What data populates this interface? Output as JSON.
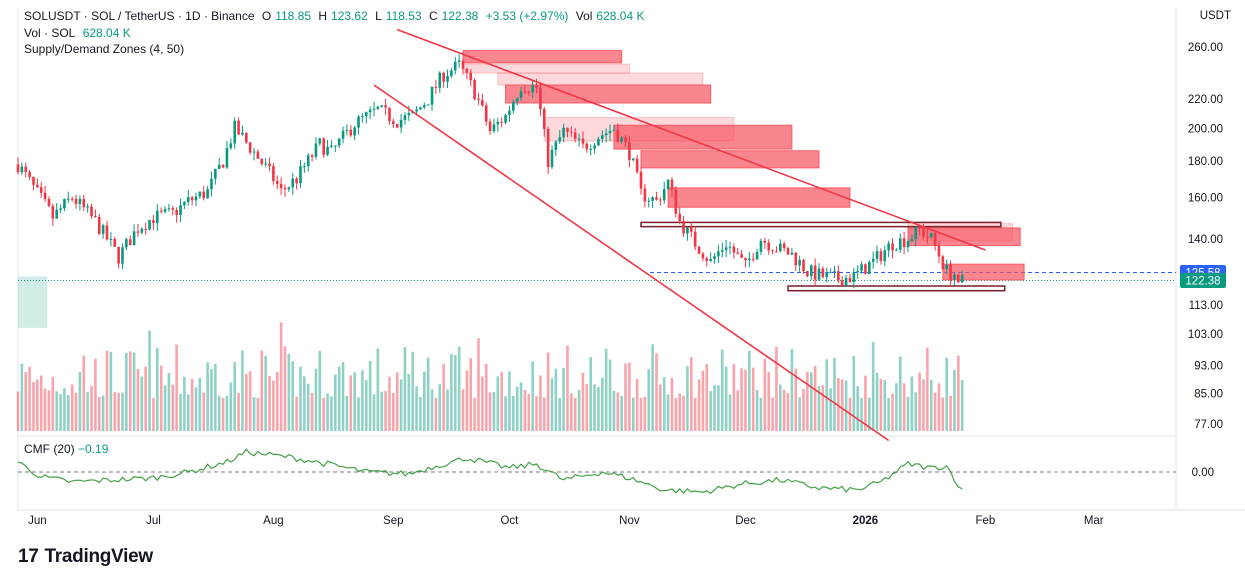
{
  "header": {
    "symbol": "SOLUSDT · SOL / TetherUS · 1D · Binance",
    "open_label": "O",
    "open": "118.85",
    "high_label": "H",
    "high": "123.62",
    "low_label": "L",
    "low": "118.53",
    "close_label": "C",
    "close": "122.38",
    "change": "+3.53 (+2.97%)",
    "vol_label": "Vol",
    "vol": "628.04 K",
    "vol_line_label": "Vol · SOL",
    "vol_line_value": "628.04 K",
    "indicator": "Supply/Demand Zones (4, 50)"
  },
  "cmf": {
    "label": "CMF (20)",
    "value": "−0.19"
  },
  "currency": "USDT",
  "brand": "TradingView",
  "colors": {
    "up": "#089981",
    "down": "#f23645",
    "zone": "#f7525f",
    "trend": "#f23645",
    "price_tag": "#2962ff"
  },
  "chart_data": {
    "type": "candlestick",
    "y_scale": "log",
    "price_ticks": [
      "260.00",
      "220.00",
      "200.00",
      "180.00",
      "160.00",
      "140.00",
      "113.00",
      "103.00",
      "93.00",
      "85.00",
      "77.00"
    ],
    "price_tick_values": [
      260,
      220,
      200,
      180,
      160,
      140,
      113,
      103,
      93,
      85,
      77
    ],
    "price_tags": [
      {
        "label": "125.58",
        "value": 125.58,
        "color": "#2962ff"
      },
      {
        "label": "122.38",
        "value": 122.38,
        "color": "#089981"
      }
    ],
    "x_ticks": [
      "Jun",
      "Jul",
      "Aug",
      "Sep",
      "Oct",
      "Nov",
      "Dec",
      "2026",
      "Feb",
      "Mar"
    ],
    "x_tick_dates": [
      "2025-06-01",
      "2025-07-01",
      "2025-08-01",
      "2025-09-01",
      "2025-10-01",
      "2025-11-01",
      "2025-12-01",
      "2026-01-01",
      "2026-02-01",
      "2026-03-01"
    ],
    "price_path": [
      [
        "2025-05-27",
        178
      ],
      [
        "2025-05-31",
        165
      ],
      [
        "2025-06-05",
        150
      ],
      [
        "2025-06-10",
        160
      ],
      [
        "2025-06-16",
        148
      ],
      [
        "2025-06-22",
        132
      ],
      [
        "2025-06-27",
        145
      ],
      [
        "2025-07-01",
        150
      ],
      [
        "2025-07-06",
        152
      ],
      [
        "2025-07-10",
        158
      ],
      [
        "2025-07-15",
        163
      ],
      [
        "2025-07-19",
        180
      ],
      [
        "2025-07-22",
        200
      ],
      [
        "2025-07-26",
        188
      ],
      [
        "2025-08-01",
        170
      ],
      [
        "2025-08-03",
        163
      ],
      [
        "2025-08-07",
        170
      ],
      [
        "2025-08-13",
        190
      ],
      [
        "2025-08-16",
        185
      ],
      [
        "2025-08-22",
        203
      ],
      [
        "2025-08-28",
        212
      ],
      [
        "2025-09-02",
        205
      ],
      [
        "2025-09-06",
        208
      ],
      [
        "2025-09-10",
        220
      ],
      [
        "2025-09-14",
        238
      ],
      [
        "2025-09-18",
        245
      ],
      [
        "2025-09-22",
        225
      ],
      [
        "2025-09-26",
        198
      ],
      [
        "2025-09-30",
        208
      ],
      [
        "2025-10-04",
        230
      ],
      [
        "2025-10-08",
        228
      ],
      [
        "2025-10-10",
        195
      ],
      [
        "2025-10-11",
        180
      ],
      [
        "2025-10-15",
        198
      ],
      [
        "2025-10-20",
        188
      ],
      [
        "2025-10-24",
        195
      ],
      [
        "2025-10-28",
        200
      ],
      [
        "2025-11-01",
        185
      ],
      [
        "2025-11-04",
        162
      ],
      [
        "2025-11-08",
        158
      ],
      [
        "2025-11-11",
        168
      ],
      [
        "2025-11-14",
        148
      ],
      [
        "2025-11-18",
        138
      ],
      [
        "2025-11-22",
        130
      ],
      [
        "2025-11-26",
        138
      ],
      [
        "2025-12-01",
        128
      ],
      [
        "2025-12-05",
        140
      ],
      [
        "2025-12-09",
        136
      ],
      [
        "2025-12-13",
        133
      ],
      [
        "2025-12-17",
        126
      ],
      [
        "2025-12-21",
        124
      ],
      [
        "2025-12-25",
        123
      ],
      [
        "2025-12-29",
        124
      ],
      [
        "2026-01-03",
        130
      ],
      [
        "2026-01-08",
        138
      ],
      [
        "2026-01-12",
        140
      ],
      [
        "2026-01-15",
        144
      ],
      [
        "2026-01-18",
        140
      ],
      [
        "2026-01-20",
        133
      ],
      [
        "2026-01-22",
        126
      ],
      [
        "2026-01-24",
        125
      ],
      [
        "2026-01-25",
        119
      ],
      [
        "2026-01-26",
        122.38
      ]
    ],
    "supply_zones": [
      {
        "start": "2025-09-19",
        "end": "2025-10-30",
        "low": 247,
        "high": 257
      },
      {
        "start": "2025-09-19",
        "end": "2025-11-01",
        "low": 239,
        "high": 246,
        "light": true
      },
      {
        "start": "2025-09-28",
        "end": "2025-11-20",
        "low": 230,
        "high": 239,
        "light": true
      },
      {
        "start": "2025-09-30",
        "end": "2025-11-22",
        "low": 217,
        "high": 230
      },
      {
        "start": "2025-10-10",
        "end": "2025-11-28",
        "low": 192,
        "high": 207,
        "light": true
      },
      {
        "start": "2025-10-28",
        "end": "2025-12-13",
        "low": 187,
        "high": 202
      },
      {
        "start": "2025-11-04",
        "end": "2025-12-20",
        "low": 176,
        "high": 186
      },
      {
        "start": "2025-11-11",
        "end": "2025-12-28",
        "low": 155,
        "high": 165
      },
      {
        "start": "2026-01-12",
        "end": "2026-02-08",
        "low": 139,
        "high": 147,
        "light": true
      },
      {
        "start": "2026-01-12",
        "end": "2026-02-10",
        "low": 137,
        "high": 145
      },
      {
        "start": "2026-01-21",
        "end": "2026-02-11",
        "low": 122.6,
        "high": 129
      }
    ],
    "outlined_zones": [
      {
        "start": "2025-11-04",
        "end": "2026-02-05",
        "low": 145.6,
        "high": 147.6
      },
      {
        "start": "2025-12-12",
        "end": "2026-02-06",
        "low": 118.4,
        "high": 120.2
      }
    ],
    "demand_zone": {
      "start": "2025-05-27",
      "end": "2025-06-01",
      "low": 105,
      "high": 124
    },
    "dashed_levels": [
      125.58
    ],
    "trendlines": [
      {
        "x1": "2025-09-02",
        "y1": 275,
        "x2": "2026-02-01",
        "y2": 135
      },
      {
        "x1": "2025-08-27",
        "y1": 230,
        "x2": "2026-01-07",
        "y2": 73
      }
    ],
    "volume": {
      "min_height_pct": 30,
      "max_height_pct": 100
    },
    "cmf_series": {
      "zero_label": "0.00",
      "points": [
        [
          "2025-05-27",
          0.1
        ],
        [
          "2025-06-02",
          -0.05
        ],
        [
          "2025-06-10",
          -0.1
        ],
        [
          "2025-06-20",
          -0.08
        ],
        [
          "2025-07-01",
          -0.06
        ],
        [
          "2025-07-10",
          0.0
        ],
        [
          "2025-07-20",
          0.1
        ],
        [
          "2025-07-25",
          0.2
        ],
        [
          "2025-08-05",
          0.15
        ],
        [
          "2025-08-15",
          0.08
        ],
        [
          "2025-08-25",
          0.0
        ],
        [
          "2025-09-05",
          -0.02
        ],
        [
          "2025-09-12",
          0.06
        ],
        [
          "2025-09-20",
          0.14
        ],
        [
          "2025-10-01",
          0.04
        ],
        [
          "2025-10-08",
          0.08
        ],
        [
          "2025-10-15",
          -0.08
        ],
        [
          "2025-10-25",
          0.0
        ],
        [
          "2025-11-01",
          -0.06
        ],
        [
          "2025-11-10",
          -0.18
        ],
        [
          "2025-11-20",
          -0.2
        ],
        [
          "2025-11-30",
          -0.12
        ],
        [
          "2025-12-10",
          -0.08
        ],
        [
          "2025-12-20",
          -0.16
        ],
        [
          "2025-12-30",
          -0.18
        ],
        [
          "2026-01-05",
          -0.1
        ],
        [
          "2026-01-12",
          0.08
        ],
        [
          "2026-01-18",
          0.04
        ],
        [
          "2026-01-22",
          0.06
        ],
        [
          "2026-01-26",
          -0.19
        ]
      ]
    }
  }
}
